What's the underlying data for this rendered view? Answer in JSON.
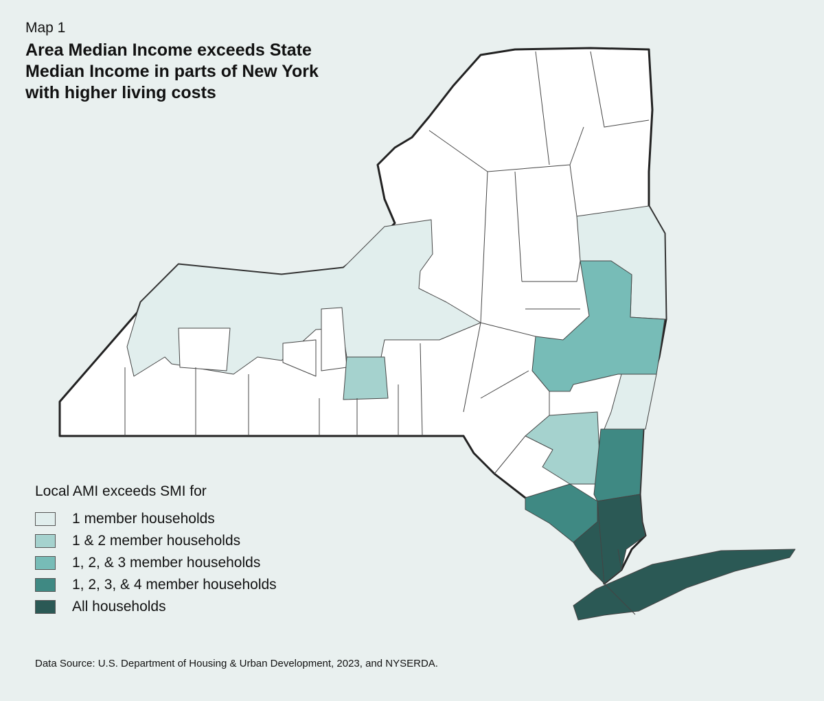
{
  "header": {
    "label": "Map 1",
    "title": [
      "Area Median Income exceeds State",
      "Median Income in parts of New York",
      "with higher living costs"
    ]
  },
  "legend": {
    "title": "Local AMI exceeds SMI for",
    "items": [
      {
        "label": "1 member households",
        "color": "#e1eeed"
      },
      {
        "label": "1 & 2 member households",
        "color": "#a5d2ce"
      },
      {
        "label": "1, 2, & 3 member households",
        "color": "#77bcb7"
      },
      {
        "label": "1, 2, 3, & 4 member households",
        "color": "#3f8983"
      },
      {
        "label": "All households",
        "color": "#2b5955"
      }
    ]
  },
  "source": "Data Source: U.S. Department of Housing & Urban Development, 2023, and NYSERDA."
}
